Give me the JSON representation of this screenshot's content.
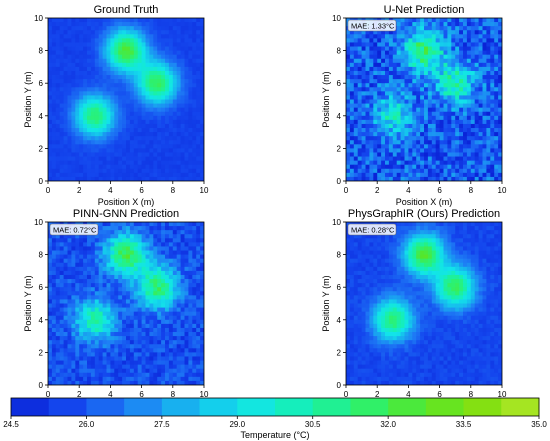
{
  "chart_data": [
    {
      "type": "heatmap",
      "title": "Ground Truth",
      "mae_label": "",
      "xlabel": "Position X (m)",
      "ylabel": "Position Y (m)",
      "xlim": [
        0,
        10
      ],
      "ylim": [
        0,
        10
      ],
      "x_ticks": [
        "0",
        "2",
        "4",
        "6",
        "8",
        "10"
      ],
      "y_ticks": [
        "0",
        "2",
        "4",
        "6",
        "8",
        "10"
      ],
      "background_temp": 25.5,
      "noise": 0.25,
      "hotspots": [
        {
          "x": 5,
          "y": 8,
          "peak_temp": 32.5
        },
        {
          "x": 7,
          "y": 6,
          "peak_temp": 31.8
        },
        {
          "x": 3,
          "y": 4,
          "peak_temp": 31.5
        }
      ]
    },
    {
      "type": "heatmap",
      "title": "U-Net Prediction",
      "mae_label": "MAE: 1.33°C",
      "xlabel": "Position X (m)",
      "ylabel": "Position Y (m)",
      "xlim": [
        0,
        10
      ],
      "ylim": [
        0,
        10
      ],
      "x_ticks": [
        "0",
        "2",
        "4",
        "6",
        "8",
        "10"
      ],
      "y_ticks": [
        "0",
        "2",
        "4",
        "6",
        "8",
        "10"
      ],
      "background_temp": 26.0,
      "noise": 1.6,
      "hotspots": [
        {
          "x": 5,
          "y": 8,
          "peak_temp": 31.5
        },
        {
          "x": 7,
          "y": 6,
          "peak_temp": 30.5
        },
        {
          "x": 3,
          "y": 4,
          "peak_temp": 29.5
        }
      ]
    },
    {
      "type": "heatmap",
      "title": "PINN-GNN Prediction",
      "mae_label": "MAE: 0.72°C",
      "xlabel": "Position X (m)",
      "ylabel": "Position Y (m)",
      "xlim": [
        0,
        10
      ],
      "ylim": [
        0,
        10
      ],
      "x_ticks": [
        "0",
        "2",
        "4",
        "6",
        "8",
        "10"
      ],
      "y_ticks": [
        "0",
        "2",
        "4",
        "6",
        "8",
        "10"
      ],
      "background_temp": 25.8,
      "noise": 0.9,
      "hotspots": [
        {
          "x": 5,
          "y": 8,
          "peak_temp": 32.0
        },
        {
          "x": 7,
          "y": 6,
          "peak_temp": 31.5
        },
        {
          "x": 3,
          "y": 4,
          "peak_temp": 30.5
        }
      ]
    },
    {
      "type": "heatmap",
      "title": "PhysGraphIR (Ours) Prediction",
      "mae_label": "MAE: 0.28°C",
      "xlabel": "Position X (m)",
      "ylabel": "Position Y (m)",
      "xlim": [
        0,
        10
      ],
      "ylim": [
        0,
        10
      ],
      "x_ticks": [
        "0",
        "2",
        "4",
        "6",
        "8",
        "10"
      ],
      "y_ticks": [
        "0",
        "2",
        "4",
        "6",
        "8",
        "10"
      ],
      "background_temp": 25.6,
      "noise": 0.35,
      "hotspots": [
        {
          "x": 5,
          "y": 8,
          "peak_temp": 32.5
        },
        {
          "x": 7,
          "y": 6,
          "peak_temp": 31.8
        },
        {
          "x": 3,
          "y": 4,
          "peak_temp": 31.5
        }
      ]
    }
  ],
  "colorbar": {
    "label": "Temperature (°C)",
    "min": 24.5,
    "max": 35.0,
    "ticks": [
      "24.5",
      "26.0",
      "27.5",
      "29.0",
      "30.5",
      "32.0",
      "33.5",
      "35.0"
    ],
    "colormap": [
      "#0a22d6",
      "#1446ee",
      "#1e7cf5",
      "#17b6ee",
      "#12e4ea",
      "#16f0b2",
      "#2cf170",
      "#55e62a",
      "#82e011",
      "#b6e82a"
    ]
  }
}
